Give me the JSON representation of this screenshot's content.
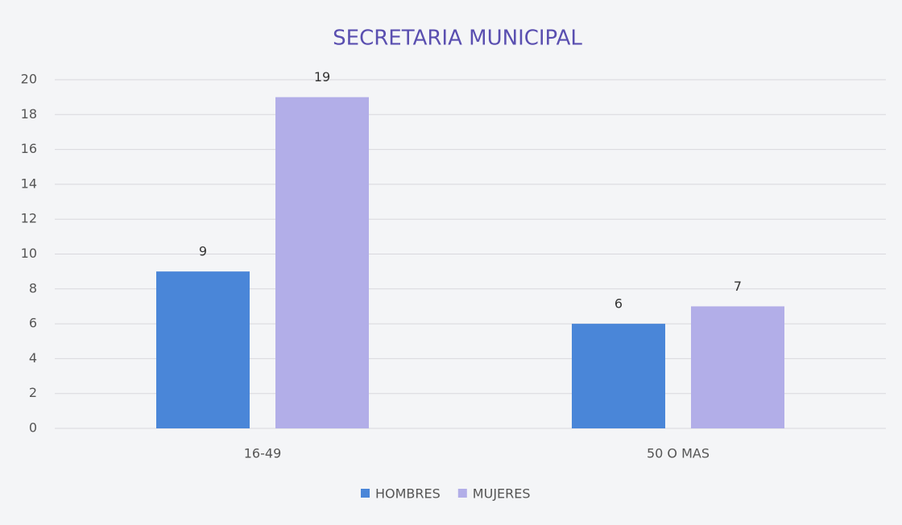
{
  "chart_data": {
    "type": "bar",
    "title": "SECRETARIA MUNICIPAL",
    "categories": [
      "16-49",
      "50 O MAS"
    ],
    "series": [
      {
        "name": "HOMBRES",
        "color": "#4a86d8",
        "values": [
          9,
          6
        ]
      },
      {
        "name": "MUJERES",
        "color": "#b2aee8",
        "values": [
          19,
          7
        ]
      }
    ],
    "ylim": [
      0,
      20
    ],
    "yticks": [
      0,
      2,
      4,
      6,
      8,
      10,
      12,
      14,
      16,
      18,
      20
    ],
    "grid": true,
    "legend": "bottom"
  }
}
